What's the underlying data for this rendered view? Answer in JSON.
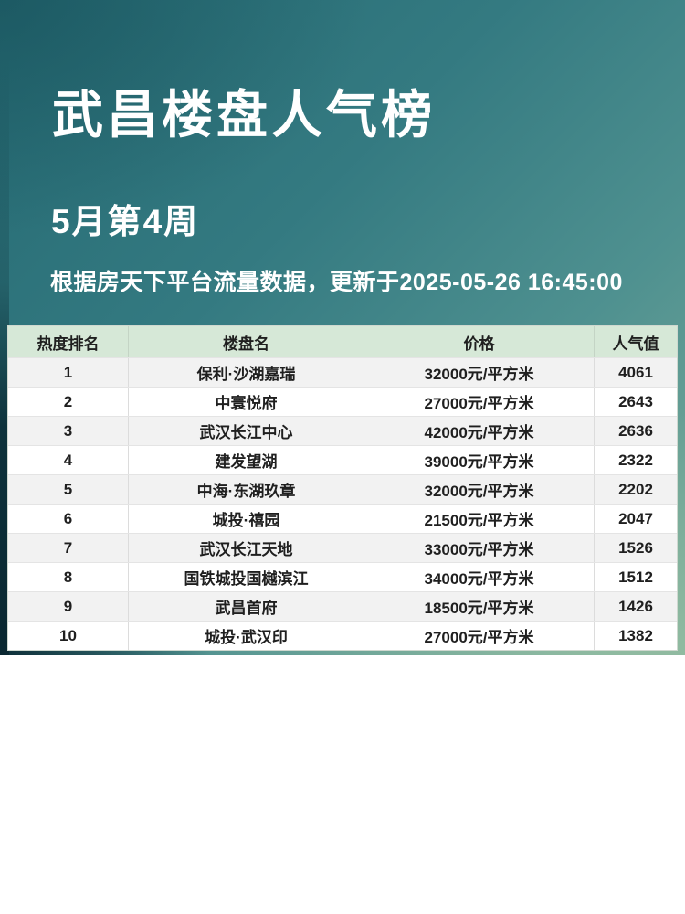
{
  "hero": {
    "title": "武昌楼盘人气榜",
    "subtitle": "5月第4周",
    "note": "根据房天下平台流量数据，更新于2025-05-26 16:45:00"
  },
  "colors": {
    "teal_top_left": "#256a73",
    "teal_top_right": "#3a7f86",
    "teal_bottom_right": "#7fae9a",
    "left_edge_dark": "#0a2d36",
    "table_header_bg": "#d6e8d7",
    "row_alt_bg": "#f2f2f2",
    "row_bg": "#ffffff",
    "table_text": "#1f1f1f",
    "hero_text": "#ffffff"
  },
  "chart_data": {
    "type": "table",
    "title": "武昌楼盘人气榜",
    "subtitle": "5月第4周",
    "source_note": "根据房天下平台流量数据，更新于2025-05-26 16:45:00",
    "columns": [
      "热度排名",
      "楼盘名",
      "价格",
      "人气值"
    ],
    "rows": [
      {
        "rank": "1",
        "name": "保利·沙湖嘉瑞",
        "price": "32000元/平方米",
        "popularity": "4061"
      },
      {
        "rank": "2",
        "name": "中寰悦府",
        "price": "27000元/平方米",
        "popularity": "2643"
      },
      {
        "rank": "3",
        "name": "武汉长江中心",
        "price": "42000元/平方米",
        "popularity": "2636"
      },
      {
        "rank": "4",
        "name": "建发望湖",
        "price": "39000元/平方米",
        "popularity": "2322"
      },
      {
        "rank": "5",
        "name": "中海·东湖玖章",
        "price": "32000元/平方米",
        "popularity": "2202"
      },
      {
        "rank": "6",
        "name": "城投·禧园",
        "price": "21500元/平方米",
        "popularity": "2047"
      },
      {
        "rank": "7",
        "name": "武汉长江天地",
        "price": "33000元/平方米",
        "popularity": "1526"
      },
      {
        "rank": "8",
        "name": "国铁城投国樾滨江",
        "price": "34000元/平方米",
        "popularity": "1512"
      },
      {
        "rank": "9",
        "name": "武昌首府",
        "price": "18500元/平方米",
        "popularity": "1426"
      },
      {
        "rank": "10",
        "name": "城投·武汉印",
        "price": "27000元/平方米",
        "popularity": "1382"
      }
    ]
  }
}
